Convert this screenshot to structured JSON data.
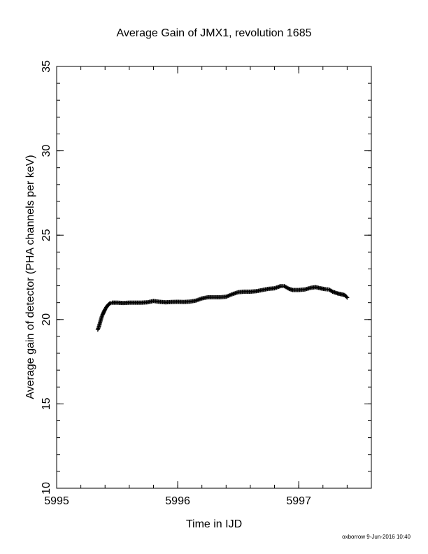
{
  "chart_data": {
    "type": "scatter",
    "title": "Average Gain of JMX1, revolution 1685",
    "xlabel": "Time in IJD",
    "ylabel": "Average gain of detector (PHA channels per keV)",
    "xlim": [
      5995,
      5997.6
    ],
    "ylim": [
      10,
      35
    ],
    "xticks": [
      5995,
      5996,
      5997
    ],
    "yticks": [
      10,
      15,
      20,
      25,
      30,
      35
    ],
    "x_minor_step": 0.2,
    "y_minor_step": 1,
    "grid": false,
    "marker": "+",
    "series": [
      {
        "points": [
          [
            5995.34,
            19.4
          ],
          [
            5995.35,
            19.6
          ],
          [
            5995.36,
            19.85
          ],
          [
            5995.37,
            20.1
          ],
          [
            5995.38,
            20.3
          ],
          [
            5995.39,
            20.45
          ],
          [
            5995.4,
            20.6
          ],
          [
            5995.41,
            20.72
          ],
          [
            5995.42,
            20.82
          ],
          [
            5995.43,
            20.9
          ],
          [
            5995.44,
            20.96
          ],
          [
            5995.46,
            21.0
          ],
          [
            5995.5,
            21.0
          ],
          [
            5995.55,
            20.98
          ],
          [
            5995.6,
            21.0
          ],
          [
            5995.65,
            21.0
          ],
          [
            5995.7,
            21.0
          ],
          [
            5995.75,
            21.02
          ],
          [
            5995.8,
            21.1
          ],
          [
            5995.85,
            21.05
          ],
          [
            5995.9,
            21.02
          ],
          [
            5995.95,
            21.04
          ],
          [
            5996.0,
            21.05
          ],
          [
            5996.05,
            21.04
          ],
          [
            5996.1,
            21.06
          ],
          [
            5996.15,
            21.12
          ],
          [
            5996.2,
            21.25
          ],
          [
            5996.25,
            21.32
          ],
          [
            5996.3,
            21.32
          ],
          [
            5996.35,
            21.32
          ],
          [
            5996.4,
            21.35
          ],
          [
            5996.45,
            21.5
          ],
          [
            5996.5,
            21.62
          ],
          [
            5996.55,
            21.65
          ],
          [
            5996.6,
            21.65
          ],
          [
            5996.65,
            21.68
          ],
          [
            5996.7,
            21.75
          ],
          [
            5996.75,
            21.82
          ],
          [
            5996.8,
            21.85
          ],
          [
            5996.85,
            21.98
          ],
          [
            5996.88,
            21.98
          ],
          [
            5996.92,
            21.82
          ],
          [
            5996.95,
            21.75
          ],
          [
            5997.0,
            21.75
          ],
          [
            5997.05,
            21.78
          ],
          [
            5997.1,
            21.88
          ],
          [
            5997.14,
            21.92
          ],
          [
            5997.18,
            21.85
          ],
          [
            5997.22,
            21.8
          ],
          [
            5997.25,
            21.78
          ],
          [
            5997.28,
            21.65
          ],
          [
            5997.32,
            21.55
          ],
          [
            5997.35,
            21.5
          ],
          [
            5997.38,
            21.45
          ],
          [
            5997.4,
            21.3
          ]
        ]
      }
    ]
  },
  "footer": {
    "stamp": "oxborrow  9-Jun-2016 10:40"
  }
}
